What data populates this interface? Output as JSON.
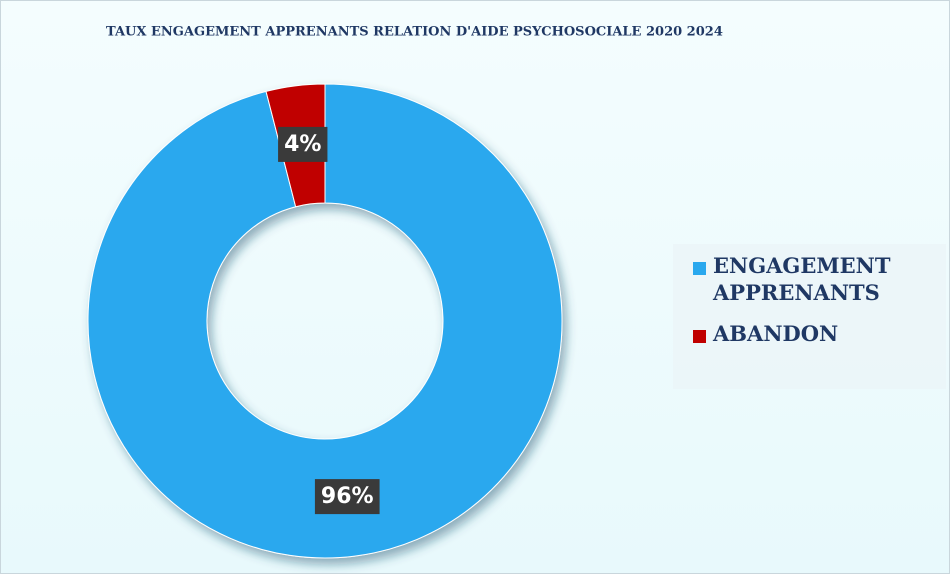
{
  "chart_data": {
    "type": "donut",
    "title": "TAUX ENGAGEMENT APPRENANTS RELATION D'AIDE PSYCHOSOCIALE  2020 2024",
    "categories": [
      "ENGAGEMENT APPRENANTS",
      "ABANDON"
    ],
    "values": [
      96,
      4
    ],
    "value_labels": [
      "96%",
      "4%"
    ],
    "colors": [
      "#29a8ee",
      "#c00000"
    ]
  }
}
